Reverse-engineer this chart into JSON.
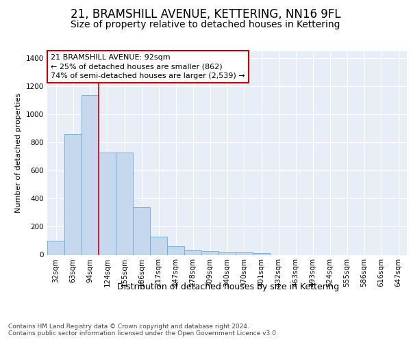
{
  "title": "21, BRAMSHILL AVENUE, KETTERING, NN16 9FL",
  "subtitle": "Size of property relative to detached houses in Kettering",
  "xlabel": "Distribution of detached houses by size in Kettering",
  "ylabel": "Number of detached properties",
  "categories": [
    "32sqm",
    "63sqm",
    "94sqm",
    "124sqm",
    "155sqm",
    "186sqm",
    "217sqm",
    "247sqm",
    "278sqm",
    "309sqm",
    "340sqm",
    "370sqm",
    "401sqm",
    "432sqm",
    "463sqm",
    "493sqm",
    "524sqm",
    "555sqm",
    "586sqm",
    "616sqm",
    "647sqm"
  ],
  "values": [
    102,
    858,
    1140,
    730,
    730,
    340,
    130,
    60,
    33,
    25,
    18,
    18,
    13,
    0,
    0,
    0,
    0,
    0,
    0,
    0,
    0
  ],
  "bar_color": "#c5d8ee",
  "bar_edge_color": "#6aaad4",
  "highlight_index": 2,
  "highlight_line_color": "#cc0000",
  "annotation_line1": "21 BRAMSHILL AVENUE: 92sqm",
  "annotation_line2": "← 25% of detached houses are smaller (862)",
  "annotation_line3": "74% of semi-detached houses are larger (2,539) →",
  "annotation_box_color": "#ffffff",
  "annotation_box_edge_color": "#cc0000",
  "ylim": [
    0,
    1450
  ],
  "yticks": [
    0,
    200,
    400,
    600,
    800,
    1000,
    1200,
    1400
  ],
  "background_color": "#e8eef8",
  "footer_text": "Contains HM Land Registry data © Crown copyright and database right 2024.\nContains public sector information licensed under the Open Government Licence v3.0.",
  "title_fontsize": 12,
  "subtitle_fontsize": 10,
  "xlabel_fontsize": 9,
  "ylabel_fontsize": 8,
  "tick_fontsize": 7.5,
  "annotation_fontsize": 8,
  "footer_fontsize": 6.5
}
